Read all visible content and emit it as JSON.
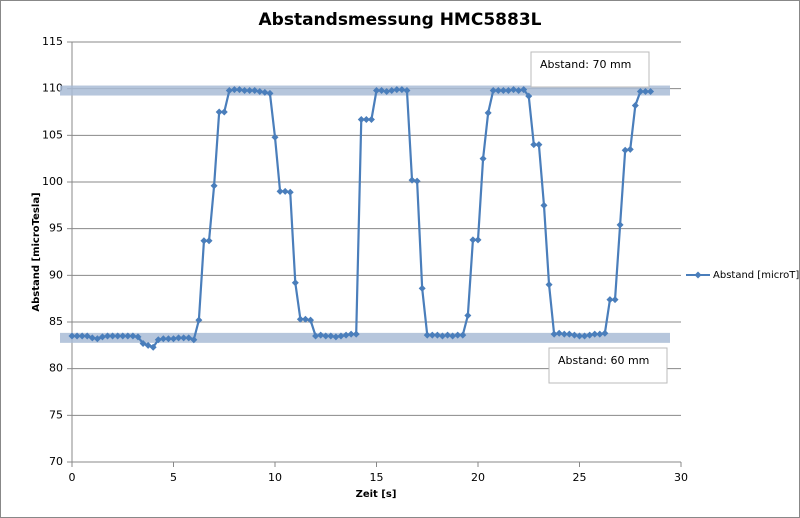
{
  "chart_data": {
    "type": "line",
    "title": "Abstandsmessung HMC5883L",
    "x_label": "Zeit [s]",
    "y_label": "Abstand [microTesla]",
    "x": [
      0,
      0.25,
      0.5,
      0.75,
      1,
      1.25,
      1.5,
      1.75,
      2,
      2.25,
      2.5,
      2.75,
      3,
      3.25,
      3.5,
      3.75,
      4,
      4.25,
      4.5,
      4.75,
      5,
      5.25,
      5.5,
      5.75,
      6,
      6.25,
      6.5,
      6.75,
      7,
      7.25,
      7.5,
      7.75,
      8,
      8.25,
      8.5,
      8.75,
      9,
      9.25,
      9.5,
      9.75,
      10,
      10.25,
      10.5,
      10.75,
      11,
      11.25,
      11.5,
      11.75,
      12,
      12.25,
      12.5,
      12.75,
      13,
      13.25,
      13.5,
      13.75,
      14,
      14.25,
      14.5,
      14.75,
      15,
      15.25,
      15.5,
      15.75,
      16,
      16.25,
      16.5,
      16.75,
      17,
      17.25,
      17.5,
      17.75,
      18,
      18.25,
      18.5,
      18.75,
      19,
      19.25,
      19.5,
      19.75,
      20,
      20.25,
      20.5,
      20.75,
      21,
      21.25,
      21.5,
      21.75,
      22,
      22.25,
      22.5,
      22.75,
      23,
      23.25,
      23.5,
      23.75,
      24,
      24.25,
      24.5,
      24.75,
      25,
      25.25,
      25.5,
      25.75,
      26,
      26.25,
      26.5,
      26.75,
      27,
      27.25,
      27.5,
      27.75,
      28,
      28.25,
      28.5
    ],
    "series": [
      {
        "name": "Abstand [microT]",
        "color": "#4a7ebb",
        "values": [
          83.5,
          83.5,
          83.5,
          83.5,
          83.3,
          83.2,
          83.4,
          83.5,
          83.5,
          83.5,
          83.5,
          83.5,
          83.5,
          83.4,
          82.7,
          82.5,
          82.3,
          83.1,
          83.2,
          83.2,
          83.2,
          83.3,
          83.3,
          83.3,
          83.1,
          85.2,
          93.7,
          93.7,
          99.6,
          107.5,
          107.5,
          109.8,
          109.9,
          109.9,
          109.8,
          109.8,
          109.8,
          109.7,
          109.6,
          109.5,
          104.8,
          99.0,
          99.0,
          98.9,
          89.2,
          85.3,
          85.3,
          85.2,
          83.5,
          83.6,
          83.5,
          83.5,
          83.4,
          83.5,
          83.6,
          83.7,
          83.7,
          106.7,
          106.7,
          106.7,
          109.8,
          109.8,
          109.7,
          109.8,
          109.9,
          109.9,
          109.8,
          100.2,
          100.1,
          88.6,
          83.6,
          83.6,
          83.6,
          83.5,
          83.6,
          83.5,
          83.6,
          83.6,
          85.7,
          93.8,
          93.8,
          102.5,
          107.4,
          109.8,
          109.8,
          109.8,
          109.8,
          109.9,
          109.8,
          109.9,
          109.2,
          104.0,
          104.0,
          97.5,
          89.0,
          83.7,
          83.8,
          83.7,
          83.7,
          83.6,
          83.5,
          83.5,
          83.6,
          83.7,
          83.7,
          83.8,
          87.4,
          87.4,
          95.4,
          103.4,
          103.5,
          108.2,
          109.7,
          109.7,
          109.7
        ]
      }
    ],
    "xlim": [
      0,
      30
    ],
    "xticks": [
      0,
      5,
      10,
      15,
      20,
      25,
      30
    ],
    "ylim": [
      70,
      115
    ],
    "yticks": [
      70,
      75,
      80,
      85,
      90,
      95,
      100,
      105,
      110,
      115
    ],
    "grid": true,
    "legend": "right",
    "annotations": [
      {
        "text": "Abstand: 70 mm",
        "y": 109.8
      },
      {
        "text": "Abstand: 60 mm",
        "y": 83.3
      }
    ]
  }
}
